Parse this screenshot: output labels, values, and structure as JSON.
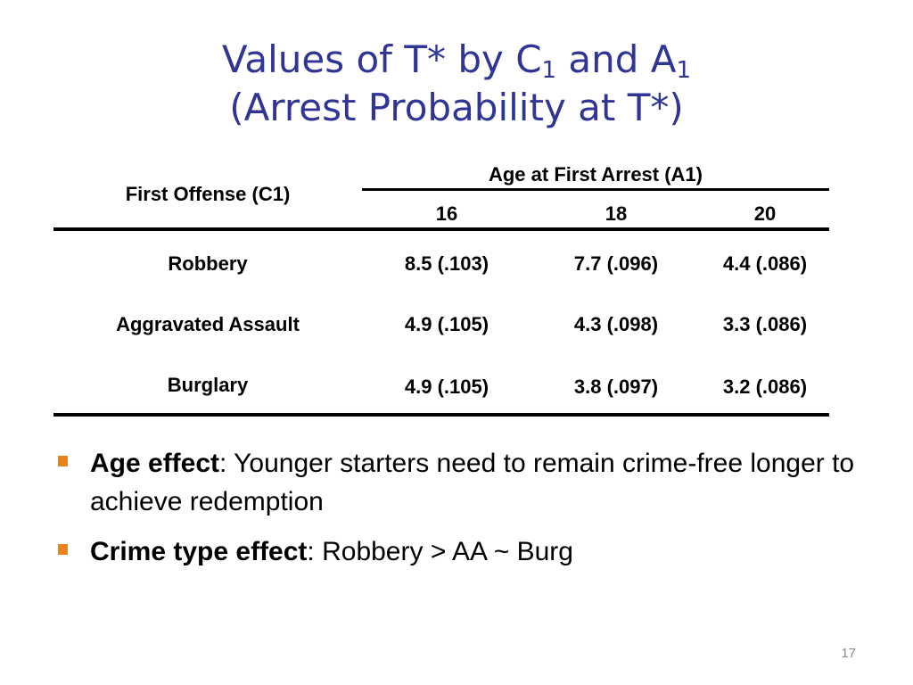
{
  "title": {
    "line1_pre": "Values of T* by C",
    "line1_sub1": "1",
    "line1_mid": " and A",
    "line1_sub2": "1",
    "line2": "(Arrest Probability at T*)"
  },
  "table": {
    "row_header_label": "First Offense (C1)",
    "group_header": "Age at First Arrest (A1)",
    "columns": [
      "16",
      "18",
      "20"
    ],
    "rows": [
      {
        "label": "Robbery",
        "cells": [
          "8.5 (.103)",
          "7.7 (.096)",
          "4.4 (.086)"
        ]
      },
      {
        "label": "Aggravated Assault",
        "cells": [
          "4.9 (.105)",
          "4.3 (.098)",
          "3.3 (.086)"
        ]
      },
      {
        "label": "Burglary",
        "cells": [
          "4.9 (.105)",
          "3.8 (.097)",
          "3.2 (.086)"
        ]
      }
    ]
  },
  "bullets": [
    {
      "bold": "Age effect",
      "text": ": Younger starters need to remain crime-free longer to achieve redemption"
    },
    {
      "bold": "Crime type effect",
      "text": ": Robbery > AA ~ Burg"
    }
  ],
  "page_number": "17",
  "colors": {
    "title": "#2f3595",
    "bullet": "#e8821f"
  }
}
